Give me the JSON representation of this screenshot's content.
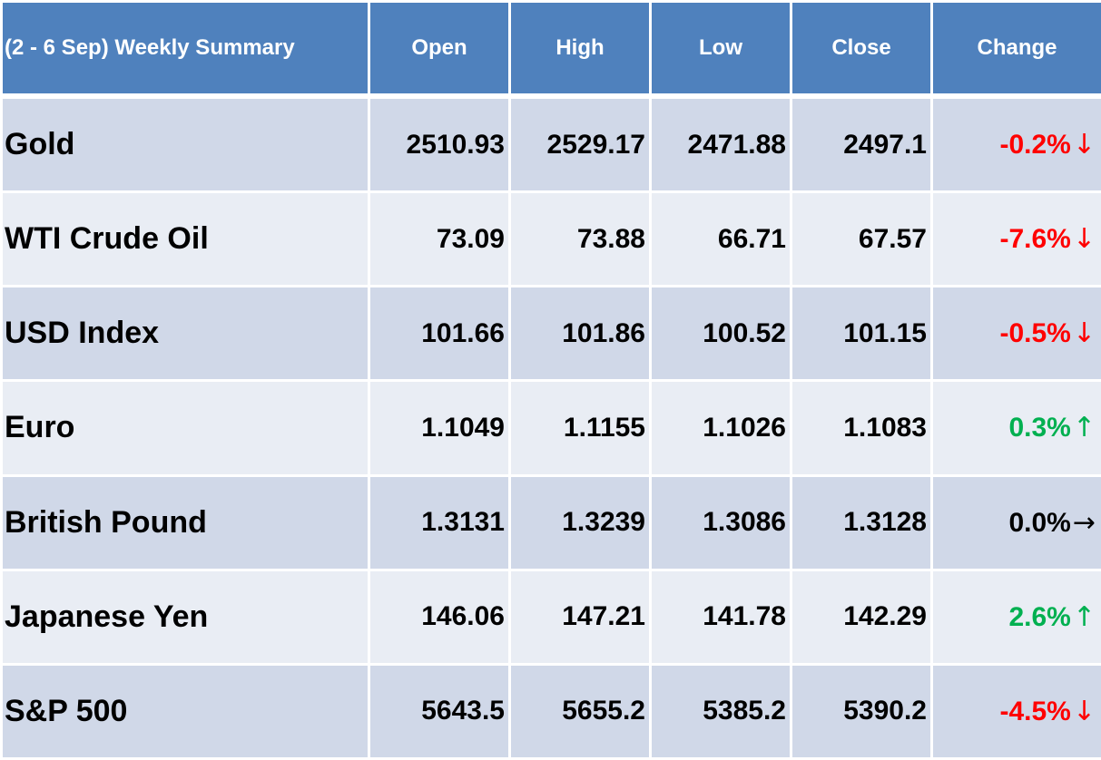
{
  "table": {
    "headers": {
      "title": "(2 - 6 Sep) Weekly Summary",
      "open": "Open",
      "high": "High",
      "low": "Low",
      "close": "Close",
      "change": "Change"
    },
    "rows": [
      {
        "name": "Gold",
        "open": "2510.93",
        "high": "2529.17",
        "low": "2471.88",
        "close": "2497.1",
        "change": "-0.2%",
        "direction": "down",
        "arrow": "↓",
        "color": "#ff0000"
      },
      {
        "name": "WTI Crude Oil",
        "open": "73.09",
        "high": "73.88",
        "low": "66.71",
        "close": "67.57",
        "change": "-7.6%",
        "direction": "down",
        "arrow": "↓",
        "color": "#ff0000"
      },
      {
        "name": "USD Index",
        "open": "101.66",
        "high": "101.86",
        "low": "100.52",
        "close": "101.15",
        "change": "-0.5%",
        "direction": "down",
        "arrow": "↓",
        "color": "#ff0000"
      },
      {
        "name": "Euro",
        "open": "1.1049",
        "high": "1.1155",
        "low": "1.1026",
        "close": "1.1083",
        "change": "0.3%",
        "direction": "up",
        "arrow": "↑",
        "color": "#00b050"
      },
      {
        "name": "British Pound",
        "open": "1.3131",
        "high": "1.3239",
        "low": "1.3086",
        "close": "1.3128",
        "change": "0.0%",
        "direction": "flat",
        "arrow": "→",
        "color": "#000000"
      },
      {
        "name": "Japanese Yen",
        "open": "146.06",
        "high": "147.21",
        "low": "141.78",
        "close": "142.29",
        "change": "2.6%",
        "direction": "up",
        "arrow": "↑",
        "color": "#00b050"
      },
      {
        "name": "S&P 500",
        "open": "5643.5",
        "high": "5655.2",
        "low": "5385.2",
        "close": "5390.2",
        "change": "-4.5%",
        "direction": "down",
        "arrow": "↓",
        "color": "#ff0000"
      }
    ]
  },
  "colors": {
    "header_bg": "#4f81bd",
    "row_odd_bg": "#d0d8e8",
    "row_even_bg": "#e9edf4",
    "negative": "#ff0000",
    "positive": "#00b050",
    "neutral": "#000000"
  }
}
